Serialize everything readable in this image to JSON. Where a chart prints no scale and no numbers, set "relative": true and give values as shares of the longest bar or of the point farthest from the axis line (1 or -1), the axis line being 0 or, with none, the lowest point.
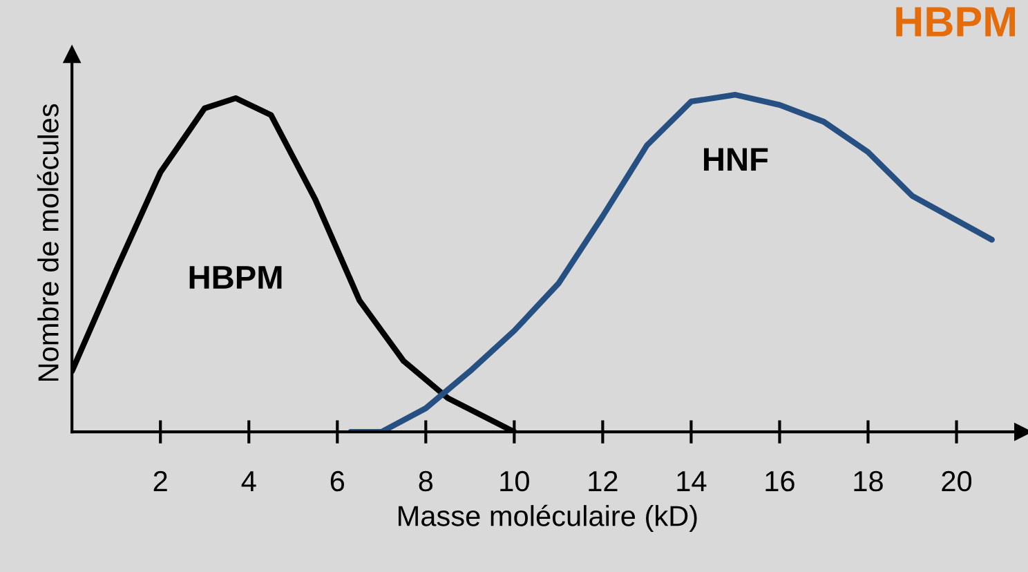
{
  "chart_data": {
    "type": "line",
    "title": "HBPM",
    "xlabel": "Masse moléculaire (kD)",
    "ylabel": "Nombre de molécules",
    "relative": true,
    "xlim": [
      0,
      21.5
    ],
    "xticks": [
      2,
      4,
      6,
      8,
      10,
      12,
      14,
      16,
      18,
      20
    ],
    "grid": false,
    "legend": false,
    "marker": "none",
    "line_style": "solid",
    "series": [
      {
        "name": "HBPM",
        "color": "#000000",
        "x": [
          0,
          1,
          2,
          3,
          3.7,
          4.5,
          5.5,
          6.5,
          7.5,
          8.5,
          10
        ],
        "values": [
          0.18,
          0.48,
          0.77,
          0.96,
          0.99,
          0.94,
          0.69,
          0.39,
          0.21,
          0.1,
          0
        ]
      },
      {
        "name": "HNF",
        "color": "#264f82",
        "x": [
          6.3,
          7,
          8,
          9,
          10,
          11,
          12,
          13,
          14,
          15,
          16,
          17,
          18,
          19,
          20.8
        ],
        "values": [
          0,
          0,
          0.07,
          0.18,
          0.3,
          0.44,
          0.64,
          0.85,
          0.98,
          1.0,
          0.97,
          0.92,
          0.83,
          0.7,
          0.57
        ]
      }
    ]
  }
}
